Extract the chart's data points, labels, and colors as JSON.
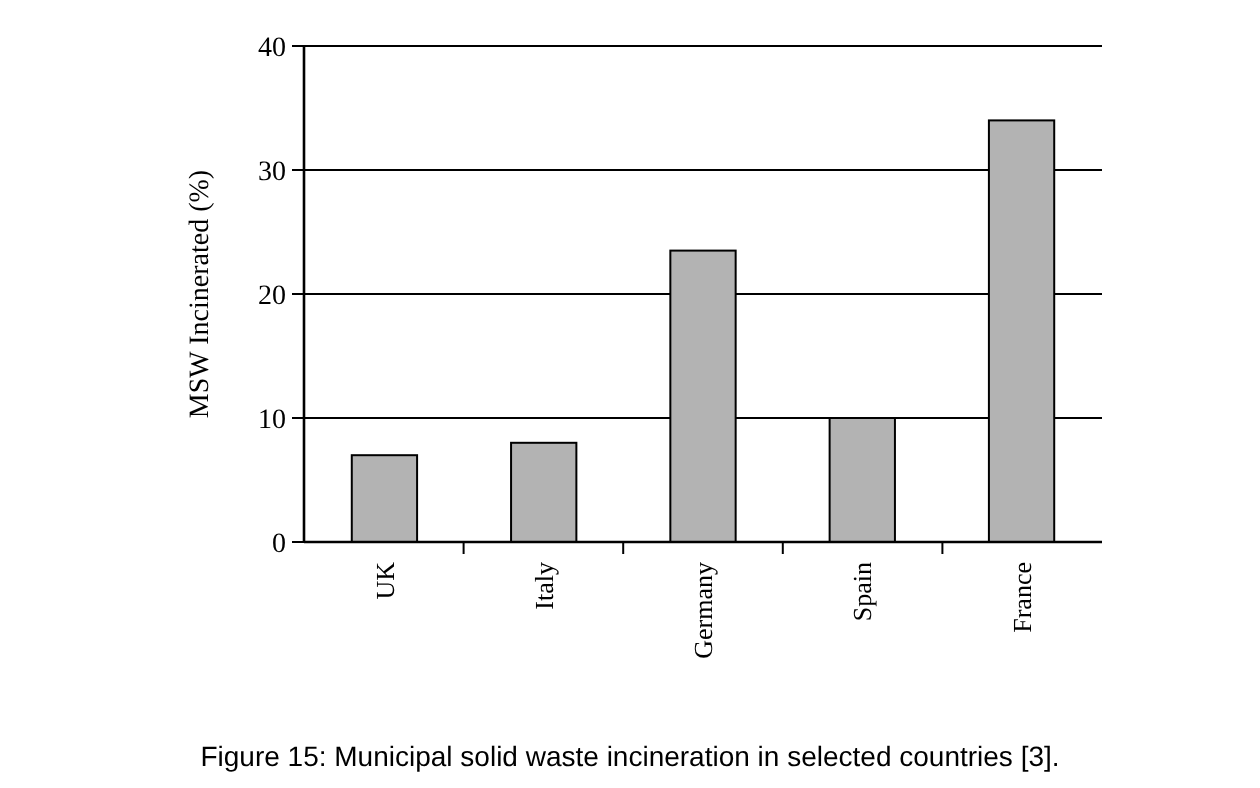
{
  "chart_data": {
    "type": "bar",
    "title": "Figure 15: Municipal solid waste incineration in selected countries [3].",
    "ylabel": "MSW Incinerated (%)",
    "categories": [
      "UK",
      "Italy",
      "Germany",
      "Spain",
      "France"
    ],
    "values": [
      7,
      8,
      23.5,
      10,
      34
    ],
    "color": "#b3b3b3",
    "ylim": [
      0,
      40
    ],
    "yticks": [
      0,
      10,
      20,
      30,
      40
    ],
    "grid": "y"
  }
}
